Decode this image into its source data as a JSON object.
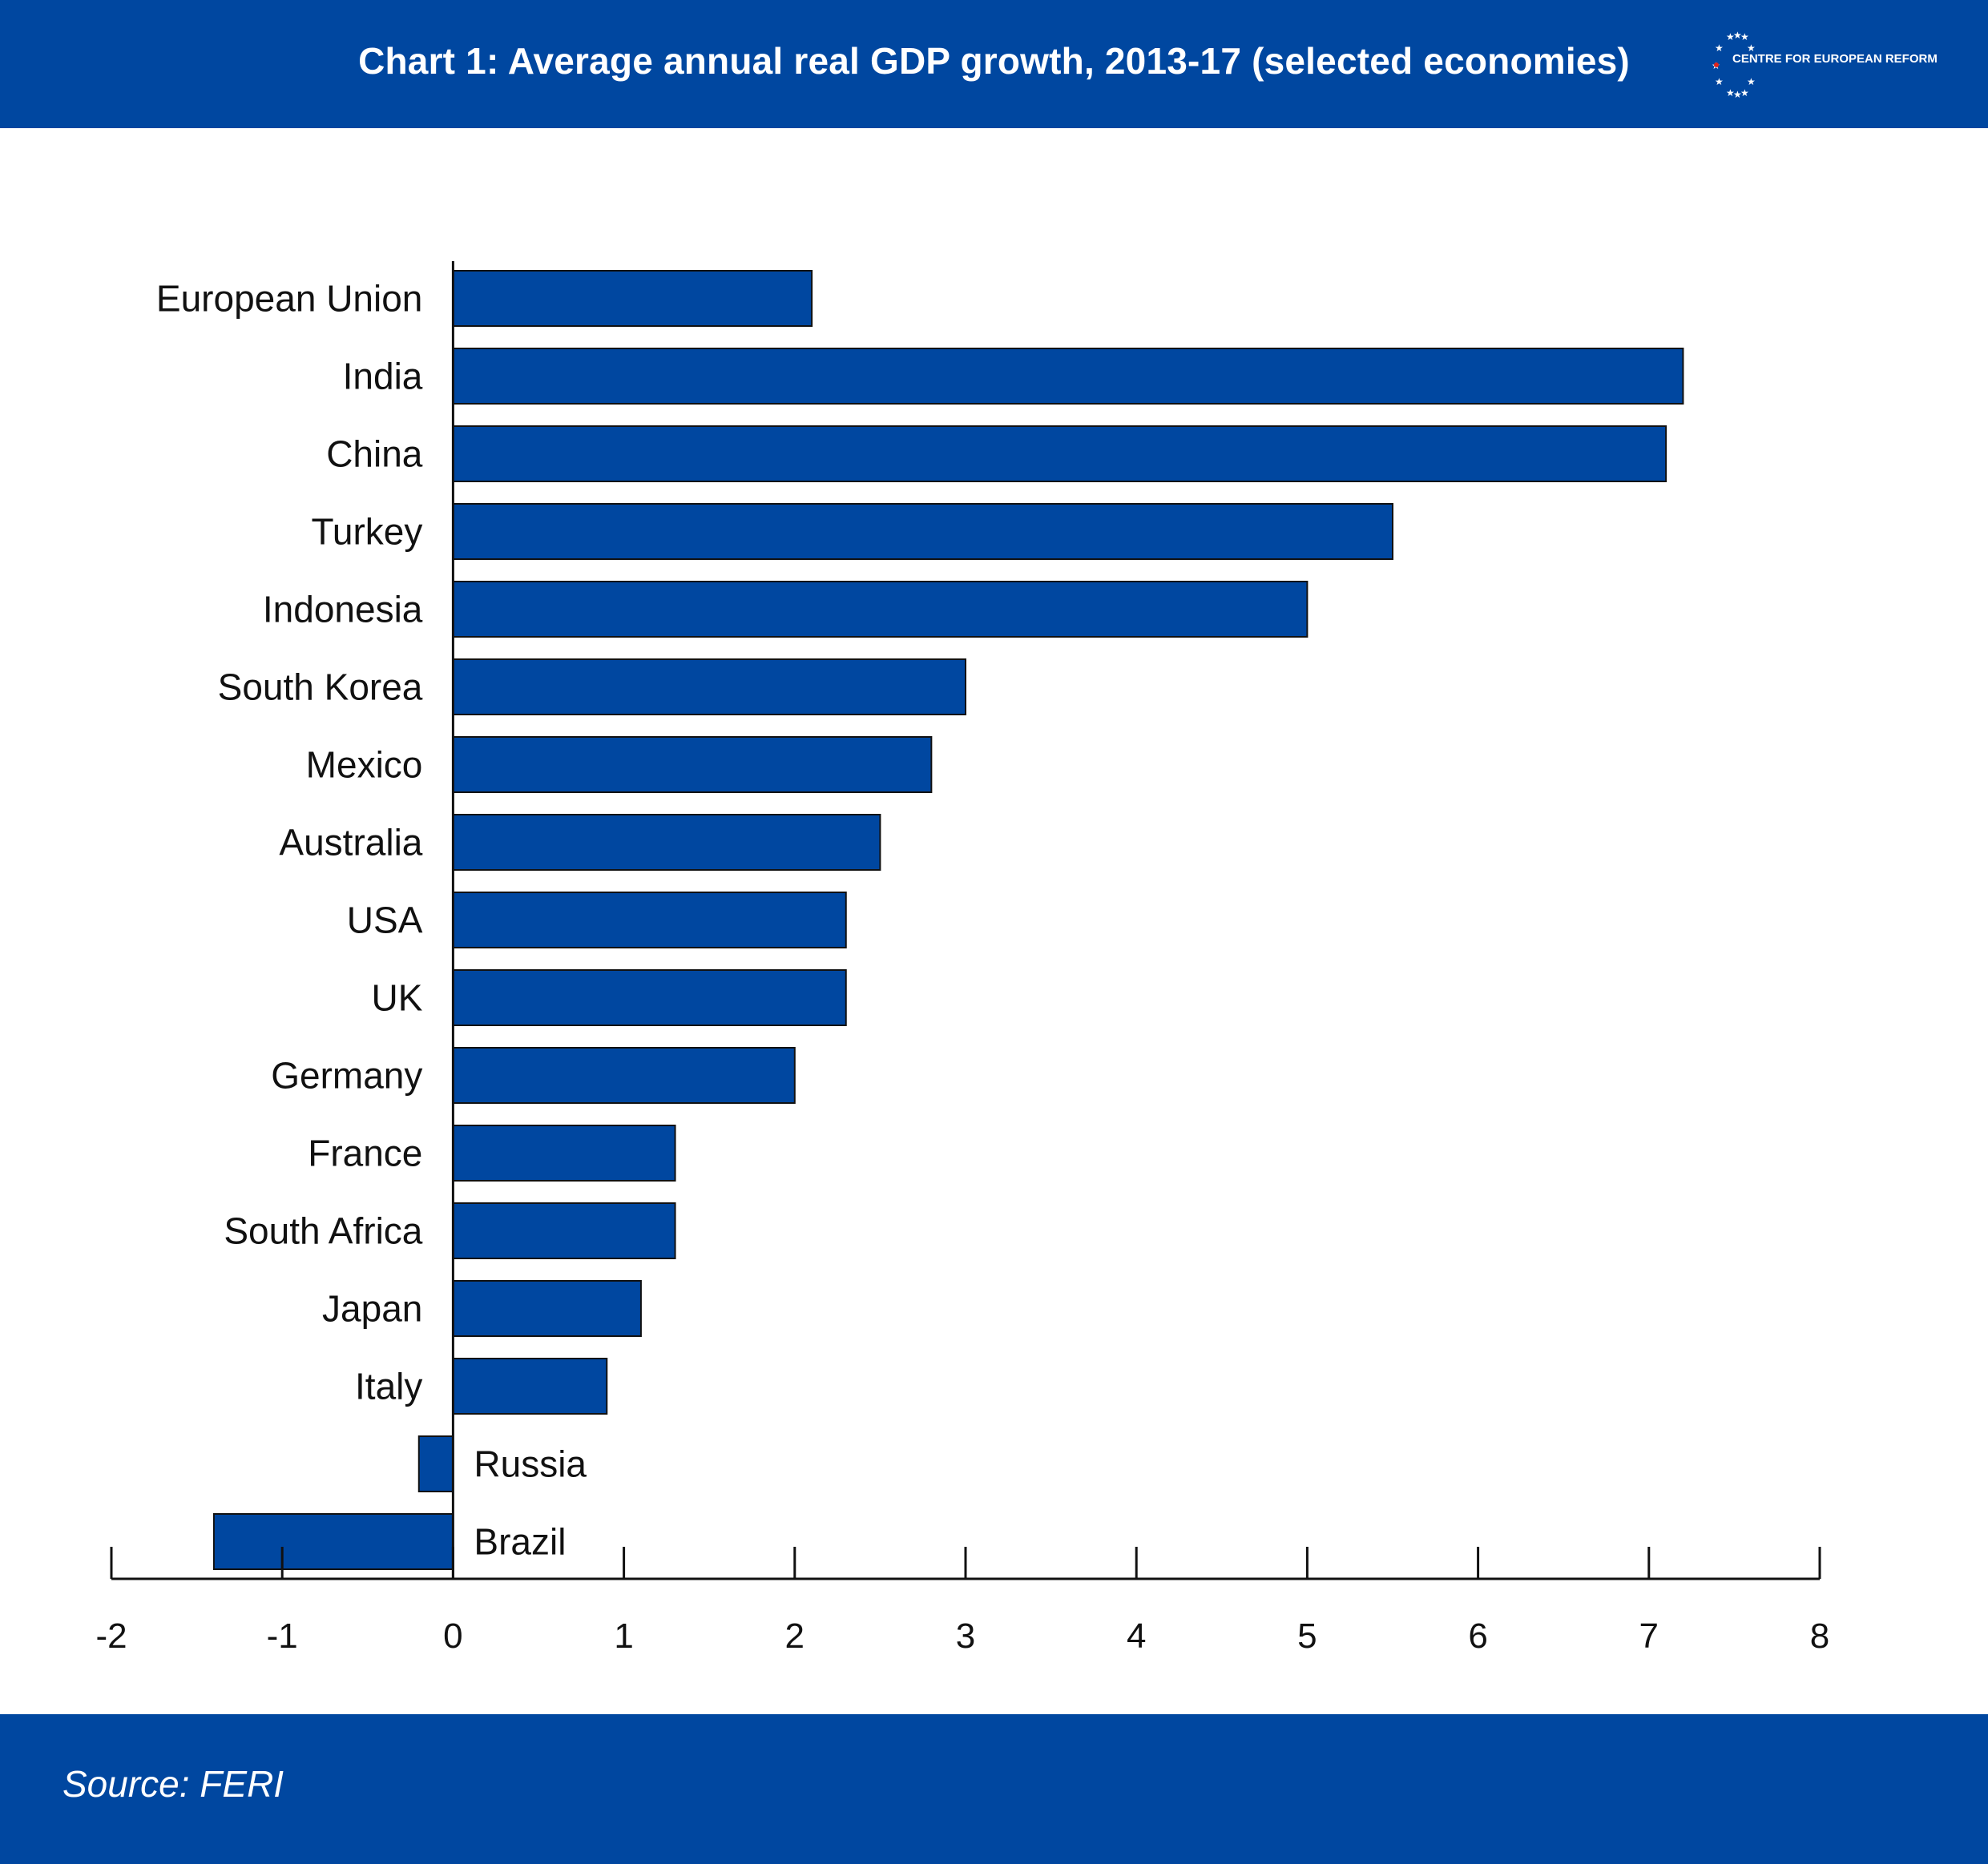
{
  "header": {
    "title": "Chart 1: Average annual real GDP growth, 2013-17 (selected economies)",
    "logo_text": "CENTRE FOR EUROPEAN REFORM",
    "logo_icon": "eu-star-ring-icon",
    "background": "#0047a0"
  },
  "footer": {
    "source": "Source: FERI",
    "background": "#0047a0"
  },
  "chart_data": {
    "type": "bar",
    "orientation": "horizontal",
    "title": "Chart 1: Average annual real GDP growth, 2013-17 (selected economies)",
    "xlabel": "",
    "ylabel": "",
    "xlim": [
      -2,
      8
    ],
    "x_ticks": [
      "-2",
      "-1",
      "0",
      "1",
      "2",
      "3",
      "4",
      "5",
      "6",
      "7",
      "8"
    ],
    "grid": false,
    "bar_color": "#0047a0",
    "categories": [
      "European Union",
      "India",
      "China",
      "Turkey",
      "Indonesia",
      "South Korea",
      "Mexico",
      "Australia",
      "USA",
      "UK",
      "Germany",
      "France",
      "South Africa",
      "Japan",
      "Italy",
      "Russia",
      "Brazil"
    ],
    "values": [
      2.1,
      7.2,
      7.1,
      5.5,
      5.0,
      3.0,
      2.8,
      2.5,
      2.3,
      2.3,
      2.0,
      1.3,
      1.3,
      1.1,
      0.9,
      -0.2,
      -1.4
    ]
  }
}
